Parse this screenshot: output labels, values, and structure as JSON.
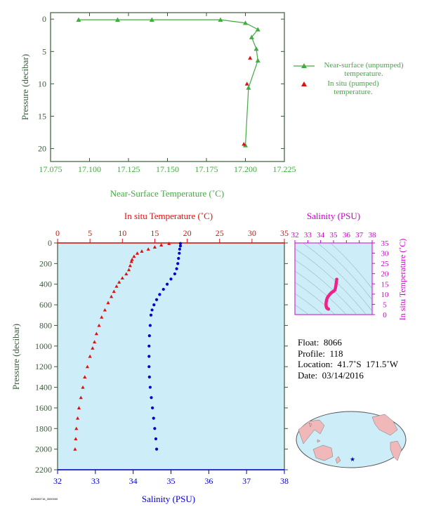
{
  "colors": {
    "green": "#44aa44",
    "axis_green": "#3a5a3a",
    "red": "#dd1111",
    "blue": "#0000cc",
    "magenta": "#cc00cc",
    "pink_points": "#ee2288",
    "plot_bg": "#cdeef8"
  },
  "chart_data": [
    {
      "type": "line",
      "xlabel": "Near-Surface Temperature (˚C)",
      "ylabel": "Pressure (decibar)",
      "xlim": [
        17.075,
        17.225
      ],
      "ylim": [
        22,
        -1
      ],
      "xticks": [
        "17.075",
        "17.100",
        "17.125",
        "17.150",
        "17.175",
        "17.200",
        "17.225"
      ],
      "yticks": [
        "0",
        "5",
        "10",
        "15",
        "20"
      ],
      "series": [
        {
          "name": "Near-surface (unpumped) temperature.",
          "marker": "triangle",
          "points": [
            [
              17.093,
              0.1
            ],
            [
              17.118,
              0.1
            ],
            [
              17.14,
              0.1
            ],
            [
              17.184,
              0.1
            ],
            [
              17.2,
              0.6
            ],
            [
              17.208,
              1.6
            ],
            [
              17.204,
              2.8
            ],
            [
              17.207,
              4.6
            ],
            [
              17.208,
              6.4
            ],
            [
              17.202,
              10.6
            ],
            [
              17.2,
              19.5
            ]
          ]
        },
        {
          "name": "In situ (pumped) temperature.",
          "marker": "triangle",
          "points": [
            [
              17.203,
              6.0
            ],
            [
              17.201,
              10.0
            ],
            [
              17.199,
              19.3
            ]
          ]
        }
      ],
      "legend_position": "right"
    },
    {
      "type": "scatter",
      "xlabel_top": "In situ Temperature (˚C)",
      "xlabel_bottom": "Salinity (PSU)",
      "ylabel": "Pressure (decibar)",
      "temp_xlim": [
        0,
        35
      ],
      "sal_xlim": [
        32,
        38
      ],
      "ylim": [
        2200,
        0
      ],
      "temp_ticks": [
        "0",
        "5",
        "10",
        "15",
        "20",
        "25",
        "30",
        "35"
      ],
      "sal_ticks": [
        "32",
        "33",
        "34",
        "35",
        "36",
        "37",
        "38"
      ],
      "yticks": [
        "0",
        "200",
        "400",
        "600",
        "800",
        "1000",
        "1200",
        "1400",
        "1600",
        "1800",
        "2000",
        "2200"
      ],
      "series": [
        {
          "name": "In situ Temperature (˚C)",
          "axis": "temperature",
          "points": [
            [
              17.2,
              5
            ],
            [
              16.0,
              20
            ],
            [
              15.0,
              40
            ],
            [
              14.0,
              60
            ],
            [
              13.0,
              80
            ],
            [
              12.3,
              100
            ],
            [
              11.8,
              130
            ],
            [
              11.5,
              160
            ],
            [
              11.4,
              180
            ],
            [
              11.2,
              220
            ],
            [
              11.0,
              260
            ],
            [
              10.6,
              300
            ],
            [
              10.0,
              340
            ],
            [
              9.5,
              380
            ],
            [
              9.1,
              420
            ],
            [
              8.7,
              470
            ],
            [
              8.3,
              520
            ],
            [
              7.8,
              580
            ],
            [
              7.3,
              650
            ],
            [
              6.8,
              720
            ],
            [
              6.4,
              800
            ],
            [
              6.0,
              880
            ],
            [
              5.7,
              960
            ],
            [
              5.4,
              1020
            ],
            [
              5.0,
              1100
            ],
            [
              4.6,
              1200
            ],
            [
              4.2,
              1300
            ],
            [
              3.9,
              1400
            ],
            [
              3.6,
              1500
            ],
            [
              3.3,
              1600
            ],
            [
              3.1,
              1700
            ],
            [
              2.9,
              1800
            ],
            [
              2.8,
              1900
            ],
            [
              2.7,
              2000
            ]
          ]
        },
        {
          "name": "Salinity (PSU)",
          "axis": "salinity",
          "points": [
            [
              35.25,
              5
            ],
            [
              35.25,
              30
            ],
            [
              35.23,
              60
            ],
            [
              35.22,
              100
            ],
            [
              35.2,
              150
            ],
            [
              35.18,
              200
            ],
            [
              35.15,
              250
            ],
            [
              35.1,
              300
            ],
            [
              35.0,
              350
            ],
            [
              34.9,
              400
            ],
            [
              34.8,
              450
            ],
            [
              34.7,
              500
            ],
            [
              34.62,
              550
            ],
            [
              34.55,
              600
            ],
            [
              34.5,
              650
            ],
            [
              34.47,
              700
            ],
            [
              34.45,
              800
            ],
            [
              34.43,
              900
            ],
            [
              34.42,
              1000
            ],
            [
              34.42,
              1100
            ],
            [
              34.42,
              1200
            ],
            [
              34.43,
              1300
            ],
            [
              34.45,
              1400
            ],
            [
              34.48,
              1500
            ],
            [
              34.51,
              1600
            ],
            [
              34.54,
              1700
            ],
            [
              34.57,
              1800
            ],
            [
              34.6,
              1900
            ],
            [
              34.62,
              2000
            ]
          ]
        }
      ]
    },
    {
      "type": "scatter",
      "xlabel": "Salinity (PSU)",
      "ylabel": "In situ Temperature (˚C)",
      "xlim": [
        32,
        38
      ],
      "ylim": [
        0,
        35
      ],
      "xticks": [
        "32",
        "33",
        "34",
        "35",
        "36",
        "37",
        "38"
      ],
      "yticks": [
        "0",
        "5",
        "10",
        "15",
        "20",
        "25",
        "30",
        "35"
      ],
      "points": [
        [
          35.25,
          17.2
        ],
        [
          35.22,
          16.0
        ],
        [
          35.2,
          15.0
        ],
        [
          35.18,
          14.0
        ],
        [
          35.15,
          13.0
        ],
        [
          35.1,
          12.0
        ],
        [
          35.0,
          11.4
        ],
        [
          34.9,
          11.0
        ],
        [
          34.8,
          10.5
        ],
        [
          34.7,
          9.8
        ],
        [
          34.6,
          9.0
        ],
        [
          34.52,
          8.2
        ],
        [
          34.47,
          7.3
        ],
        [
          34.44,
          6.4
        ],
        [
          34.42,
          5.5
        ],
        [
          34.42,
          4.6
        ],
        [
          34.44,
          3.8
        ],
        [
          34.48,
          3.2
        ],
        [
          34.54,
          2.9
        ],
        [
          34.6,
          2.7
        ]
      ]
    }
  ],
  "info": {
    "float": "Float:  8066",
    "profile": "Profile:  118",
    "location": "Location:  41.7˚S  171.5˚W",
    "date": "Date:  03/14/2016"
  },
  "footer_code": "A20080716_0000000"
}
